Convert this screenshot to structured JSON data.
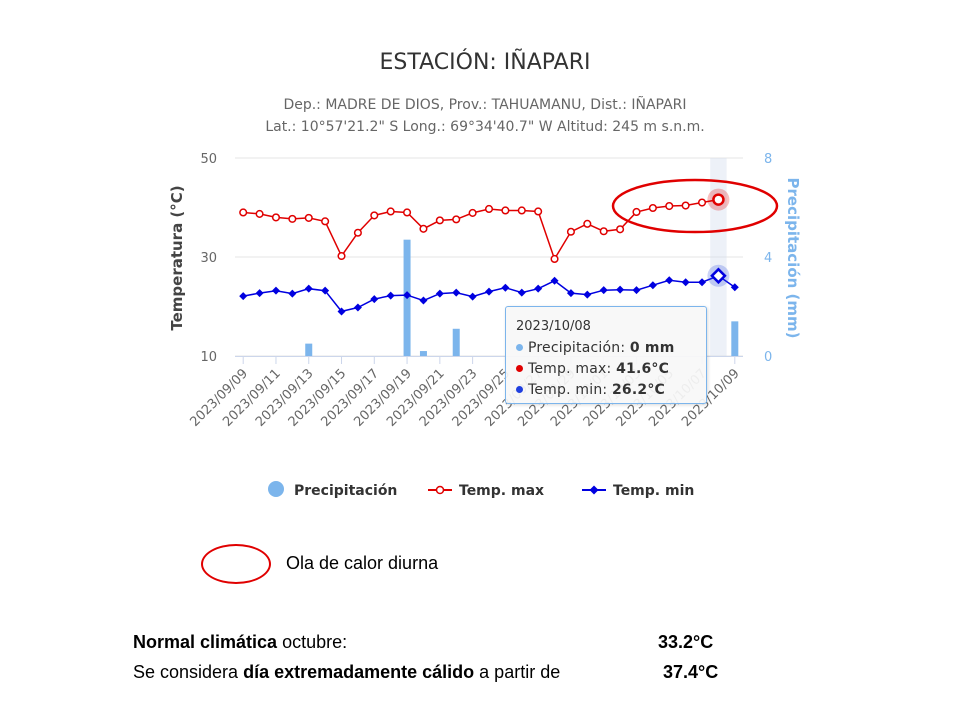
{
  "chart_data": {
    "type": "line",
    "title": "ESTACIÓN: IÑAPARI",
    "subtitle_line1": "Dep.: MADRE DE DIOS, Prov.: TAHUAMANU, Dist.: IÑAPARI",
    "subtitle_line2": "Lat.: 10°57'21.2\" S Long.: 69°34'40.7\" W Altitud: 245 m s.n.m.",
    "y_left": {
      "label": "Temperatura (°C)",
      "ticks": [
        10,
        30,
        50
      ],
      "range": [
        10,
        50
      ]
    },
    "y_right": {
      "label": "Precipitación (mm)",
      "ticks": [
        0,
        4,
        8
      ],
      "range": [
        0,
        8
      ]
    },
    "x_tick_labels": [
      "2023/09/09",
      "2023/09/11",
      "2023/09/13",
      "2023/09/15",
      "2023/09/17",
      "2023/09/19",
      "2023/09/21",
      "2023/09/23",
      "2023/09/25",
      "2023/09/27",
      "2023/09/29",
      "2023/10/01",
      "2023/10/03",
      "2023/10/05",
      "2023/10/07",
      "2023/10/09"
    ],
    "x": [
      "2023/09/09",
      "2023/09/10",
      "2023/09/11",
      "2023/09/12",
      "2023/09/13",
      "2023/09/14",
      "2023/09/15",
      "2023/09/16",
      "2023/09/17",
      "2023/09/18",
      "2023/09/19",
      "2023/09/20",
      "2023/09/21",
      "2023/09/22",
      "2023/09/23",
      "2023/09/24",
      "2023/09/25",
      "2023/09/26",
      "2023/09/27",
      "2023/09/28",
      "2023/09/29",
      "2023/09/30",
      "2023/10/01",
      "2023/10/02",
      "2023/10/03",
      "2023/10/04",
      "2023/10/05",
      "2023/10/06",
      "2023/10/07",
      "2023/10/08",
      "2023/10/09"
    ],
    "series": [
      {
        "name": "Precipitación",
        "type": "bar",
        "axis": "right",
        "color": "#7cb5ec",
        "values": [
          0,
          0,
          0,
          0,
          0.5,
          0,
          0,
          0,
          0,
          0,
          4.7,
          0.2,
          0,
          1.1,
          0,
          0,
          0,
          0,
          0,
          0,
          0,
          0,
          0,
          0,
          0,
          0,
          0,
          0,
          0,
          0,
          1.4
        ]
      },
      {
        "name": "Temp. max",
        "type": "line",
        "axis": "left",
        "color": "#e00000",
        "marker": "circle",
        "values": [
          39.0,
          38.7,
          38.0,
          37.7,
          37.9,
          37.2,
          30.2,
          34.9,
          38.4,
          39.2,
          39.0,
          35.7,
          37.4,
          37.6,
          38.9,
          39.7,
          39.4,
          39.4,
          39.2,
          29.6,
          35.1,
          36.7,
          35.2,
          35.6,
          39.1,
          39.9,
          40.3,
          40.4,
          41.0,
          41.6,
          null
        ]
      },
      {
        "name": "Temp. min",
        "type": "line",
        "axis": "left",
        "color": "#0000e0",
        "marker": "diamond",
        "values": [
          22.1,
          22.7,
          23.2,
          22.6,
          23.6,
          23.2,
          19.0,
          19.8,
          21.5,
          22.2,
          22.3,
          21.2,
          22.6,
          22.8,
          22.0,
          23.0,
          23.8,
          22.8,
          23.6,
          25.2,
          22.7,
          22.4,
          23.3,
          23.4,
          23.3,
          24.3,
          25.3,
          24.9,
          24.9,
          26.2,
          23.9
        ]
      }
    ],
    "legend_position": "bottom-center",
    "grid": "horizontal"
  },
  "tooltip": {
    "date": "2023/10/08",
    "rows": [
      {
        "label": "Precipitación: ",
        "value": "0 mm",
        "color": "#7cb5ec"
      },
      {
        "label": "Temp. max: ",
        "value": "41.6°C",
        "color": "#e00000"
      },
      {
        "label": "Temp. min: ",
        "value": "26.2°C",
        "color": "#1f3fe0"
      }
    ]
  },
  "annotation_legend": {
    "label": "Ola de calor diurna",
    "color": "#e00000"
  },
  "notes": {
    "normal_bold": "Normal climática",
    "normal_text": " octubre:",
    "normal_value": "33.2°C",
    "extreme_pre": "Se considera ",
    "extreme_bold": "día extremadamente cálido",
    "extreme_post": " a partir de",
    "extreme_value": "37.4°C"
  }
}
